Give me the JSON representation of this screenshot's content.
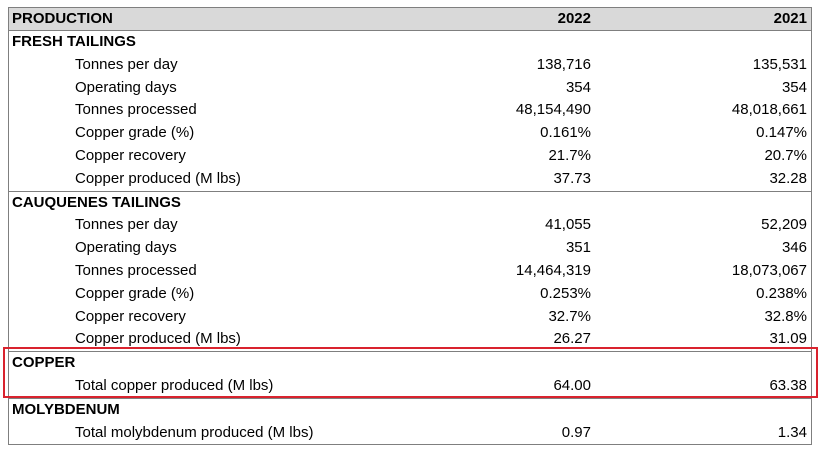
{
  "header": {
    "title": "PRODUCTION",
    "col_2022": "2022",
    "col_2021": "2021"
  },
  "sections": [
    {
      "title": "FRESH TAILINGS",
      "rows": [
        {
          "label": "Tonnes per day",
          "v2022": "138,716",
          "v2021": "135,531"
        },
        {
          "label": "Operating days",
          "v2022": "354",
          "v2021": "354"
        },
        {
          "label": "Tonnes processed",
          "v2022": "48,154,490",
          "v2021": "48,018,661"
        },
        {
          "label": "Copper grade (%)",
          "v2022": "0.161%",
          "v2021": "0.147%"
        },
        {
          "label": "Copper recovery",
          "v2022": "21.7%",
          "v2021": "20.7%"
        },
        {
          "label": "Copper produced (M lbs)",
          "v2022": "37.73",
          "v2021": "32.28"
        }
      ]
    },
    {
      "title": "CAUQUENES TAILINGS",
      "rows": [
        {
          "label": "Tonnes per day",
          "v2022": "41,055",
          "v2021": "52,209"
        },
        {
          "label": "Operating days",
          "v2022": "351",
          "v2021": "346"
        },
        {
          "label": "Tonnes processed",
          "v2022": "14,464,319",
          "v2021": "18,073,067"
        },
        {
          "label": "Copper grade (%)",
          "v2022": "0.253%",
          "v2021": "0.238%"
        },
        {
          "label": "Copper recovery",
          "v2022": "32.7%",
          "v2021": "32.8%"
        },
        {
          "label": "Copper produced (M lbs)",
          "v2022": "26.27",
          "v2021": "31.09"
        }
      ]
    },
    {
      "title": "COPPER",
      "rows": [
        {
          "label": "Total copper produced (M lbs)",
          "v2022": "64.00",
          "v2021": "63.38"
        }
      ]
    },
    {
      "title": "MOLYBDENUM",
      "rows": [
        {
          "label": "Total molybdenum produced (M lbs)",
          "v2022": "0.97",
          "v2021": "1.34"
        }
      ]
    }
  ],
  "highlight_color": "#d9232e"
}
